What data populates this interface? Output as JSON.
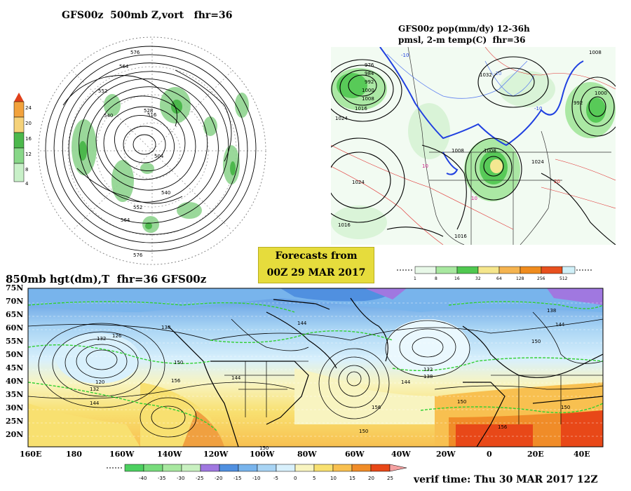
{
  "polar_panel": {
    "title": "GFS00z  500mb Z,vort   fhr=36",
    "contour_labels": [
      "576",
      "564",
      "552",
      "540",
      "528",
      "516",
      "504",
      "540",
      "552",
      "564",
      "576"
    ],
    "colorbar_labels": [
      "24",
      "20",
      "16",
      "12",
      "8",
      "4"
    ],
    "colorbar_colors": [
      "#e0401a",
      "#f2a23c",
      "#f5d27a",
      "#4cb84c",
      "#88d788",
      "#c8f0c8"
    ]
  },
  "pop_panel": {
    "title_line1": "GFS00z pop(mm/dy) 12-36h",
    "title_line2": "pmsl, 2-m temp(C)  fhr=36",
    "isobar_labels": [
      "976",
      "984",
      "992",
      "1000",
      "1008",
      "1016",
      "1024",
      "1024",
      "1008",
      "1008",
      "1016",
      "1016",
      "1024",
      "1008",
      "1000",
      "992",
      "1032"
    ],
    "temp_labels": [
      "-10",
      "-10",
      "10",
      "10",
      "20",
      "-20"
    ],
    "colorbar_labels": [
      "1",
      "8",
      "16",
      "32",
      "64",
      "128",
      "256",
      "512"
    ],
    "colorbar_colors": [
      "#e8f8e8",
      "#a8e8a0",
      "#50c850",
      "#f5e68c",
      "#f5b450",
      "#f08c1e",
      "#e8501e",
      "#d0f0f8"
    ]
  },
  "forecast_box": {
    "line1": "Forecasts from",
    "line2": "00Z 29 MAR 2017"
  },
  "map850": {
    "title": "850mb hgt(dm),T  fhr=36 GFS00z",
    "lat_labels": [
      "75N",
      "70N",
      "65N",
      "60N",
      "55N",
      "50N",
      "45N",
      "40N",
      "35N",
      "30N",
      "25N",
      "20N"
    ],
    "lon_labels": [
      "160E",
      "180",
      "160W",
      "140W",
      "120W",
      "100W",
      "80W",
      "60W",
      "40W",
      "20W",
      "0",
      "20E",
      "40E"
    ],
    "height_labels": [
      "132",
      "126",
      "120",
      "132",
      "144",
      "150",
      "156",
      "144",
      "150",
      "138",
      "144",
      "150",
      "156",
      "132",
      "138",
      "144",
      "150",
      "138",
      "144",
      "150",
      "156",
      "150"
    ],
    "colorbar_labels": [
      "-40",
      "-35",
      "-30",
      "-25",
      "-20",
      "-15",
      "-10",
      "-5",
      "0",
      "5",
      "10",
      "15",
      "20",
      "25"
    ],
    "colorbar_colors": [
      "#4cd060",
      "#78dc7c",
      "#a8e8a0",
      "#c8f0c0",
      "#a078e0",
      "#5090e0",
      "#78b4ec",
      "#a8d4f4",
      "#d8f0fc",
      "#f8f4c0",
      "#f8e070",
      "#f8c050",
      "#f08c28",
      "#e84818"
    ]
  },
  "verif_time": "verif time: Thu 30 MAR 2017 12Z"
}
